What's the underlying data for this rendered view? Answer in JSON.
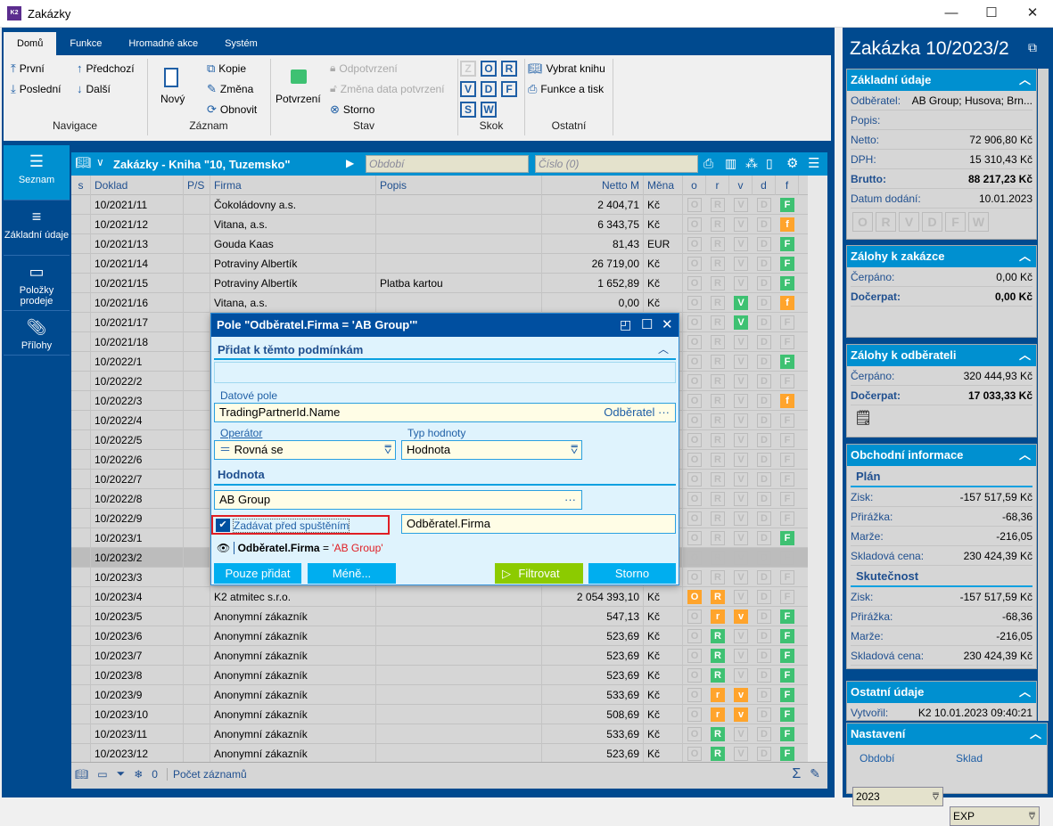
{
  "window": {
    "title": "Zakázky",
    "minimize": "—",
    "maximize": "☐",
    "close": "✕"
  },
  "ribbon": {
    "tabs": [
      "Domů",
      "Funkce",
      "Hromadné akce",
      "Systém"
    ],
    "nav": {
      "first": "První",
      "prev": "Předchozí",
      "last": "Poslední",
      "next": "Další",
      "group": "Navigace"
    },
    "record": {
      "new": "Nový",
      "copy": "Kopie",
      "edit": "Změna",
      "refresh": "Obnovit",
      "group": "Záznam"
    },
    "state": {
      "confirm": "Potvrzení",
      "unconfirm": "Odpotvrzení",
      "change_date": "Změna data potvrzení",
      "cancel": "Storno",
      "group": "Stav"
    },
    "jump": {
      "letters": [
        "Z",
        "O",
        "R",
        "V",
        "D",
        "F",
        "S",
        "W"
      ],
      "group": "Skok"
    },
    "other": {
      "book": "Vybrat knihu",
      "print": "Funkce a tisk",
      "group": "Ostatní"
    }
  },
  "leftnav": [
    {
      "label": "Seznam",
      "icon": "list-icon"
    },
    {
      "label": "Základní údaje",
      "icon": "details-icon"
    },
    {
      "label": "Položky prodeje",
      "icon": "box-icon"
    },
    {
      "label": "Přílohy",
      "icon": "paperclip-icon"
    }
  ],
  "grid": {
    "title": "Zakázky - Kniha \"10, Tuzemsko\"",
    "period_placeholder": "Období",
    "number_placeholder": "Číslo (0)",
    "columns": [
      "s",
      "Doklad",
      "P/S",
      "Firma",
      "Popis",
      "Netto M",
      "Měna",
      "o",
      "r",
      "v",
      "d",
      "f"
    ],
    "rows": [
      {
        "doklad": "10/2021/11",
        "firma": "Čokoládovny a.s.",
        "popis": "",
        "netto": "2 404,71",
        "mena": "Kč",
        "flags": [
          [
            "O",
            "off"
          ],
          [
            "R",
            "off"
          ],
          [
            "V",
            "off"
          ],
          [
            "D",
            "off"
          ],
          [
            "F",
            "green"
          ]
        ]
      },
      {
        "doklad": "10/2021/12",
        "firma": "Vitana, a.s.",
        "popis": "",
        "netto": "6 343,75",
        "mena": "Kč",
        "flags": [
          [
            "O",
            "off"
          ],
          [
            "R",
            "off"
          ],
          [
            "V",
            "off"
          ],
          [
            "D",
            "off"
          ],
          [
            "f",
            "orange"
          ]
        ]
      },
      {
        "doklad": "10/2021/13",
        "firma": "Gouda Kaas",
        "popis": "",
        "netto": "81,43",
        "mena": "EUR",
        "flags": [
          [
            "O",
            "off"
          ],
          [
            "R",
            "off"
          ],
          [
            "V",
            "off"
          ],
          [
            "D",
            "off"
          ],
          [
            "F",
            "green"
          ]
        ]
      },
      {
        "doklad": "10/2021/14",
        "firma": "Potraviny Albertík",
        "popis": "",
        "netto": "26 719,00",
        "mena": "Kč",
        "flags": [
          [
            "O",
            "off"
          ],
          [
            "R",
            "off"
          ],
          [
            "V",
            "off"
          ],
          [
            "D",
            "off"
          ],
          [
            "F",
            "green"
          ]
        ]
      },
      {
        "doklad": "10/2021/15",
        "firma": "Potraviny Albertík",
        "popis": "Platba kartou",
        "netto": "1 652,89",
        "mena": "Kč",
        "flags": [
          [
            "O",
            "off"
          ],
          [
            "R",
            "off"
          ],
          [
            "V",
            "off"
          ],
          [
            "D",
            "off"
          ],
          [
            "F",
            "green"
          ]
        ]
      },
      {
        "doklad": "10/2021/16",
        "firma": "Vitana, a.s.",
        "popis": "",
        "netto": "0,00",
        "mena": "Kč",
        "flags": [
          [
            "O",
            "off"
          ],
          [
            "R",
            "off"
          ],
          [
            "V",
            "green"
          ],
          [
            "D",
            "off"
          ],
          [
            "f",
            "orange"
          ]
        ]
      },
      {
        "doklad": "10/2021/17",
        "firma": "",
        "popis": "",
        "netto": "",
        "mena": "",
        "flags": [
          [
            "O",
            "off"
          ],
          [
            "R",
            "off"
          ],
          [
            "V",
            "green"
          ],
          [
            "D",
            "off"
          ],
          [
            "F",
            "off"
          ]
        ]
      },
      {
        "doklad": "10/2021/18",
        "firma": "",
        "popis": "",
        "netto": "",
        "mena": "",
        "flags": [
          [
            "O",
            "off"
          ],
          [
            "R",
            "off"
          ],
          [
            "V",
            "off"
          ],
          [
            "D",
            "off"
          ],
          [
            "F",
            "off"
          ]
        ]
      },
      {
        "doklad": "10/2022/1",
        "firma": "",
        "popis": "",
        "netto": "",
        "mena": "",
        "flags": [
          [
            "O",
            "off"
          ],
          [
            "R",
            "off"
          ],
          [
            "V",
            "off"
          ],
          [
            "D",
            "off"
          ],
          [
            "F",
            "green"
          ]
        ]
      },
      {
        "doklad": "10/2022/2",
        "firma": "",
        "popis": "",
        "netto": "",
        "mena": "",
        "flags": [
          [
            "O",
            "off"
          ],
          [
            "R",
            "off"
          ],
          [
            "V",
            "off"
          ],
          [
            "D",
            "off"
          ],
          [
            "F",
            "off"
          ]
        ]
      },
      {
        "doklad": "10/2022/3",
        "firma": "",
        "popis": "",
        "netto": "",
        "mena": "",
        "flags": [
          [
            "O",
            "off"
          ],
          [
            "R",
            "off"
          ],
          [
            "V",
            "off"
          ],
          [
            "D",
            "off"
          ],
          [
            "f",
            "orange"
          ]
        ]
      },
      {
        "doklad": "10/2022/4",
        "firma": "",
        "popis": "",
        "netto": "",
        "mena": "",
        "flags": [
          [
            "O",
            "off"
          ],
          [
            "R",
            "off"
          ],
          [
            "V",
            "off"
          ],
          [
            "D",
            "off"
          ],
          [
            "F",
            "off"
          ]
        ]
      },
      {
        "doklad": "10/2022/5",
        "firma": "",
        "popis": "",
        "netto": "",
        "mena": "",
        "flags": [
          [
            "O",
            "off"
          ],
          [
            "R",
            "off"
          ],
          [
            "V",
            "off"
          ],
          [
            "D",
            "off"
          ],
          [
            "F",
            "off"
          ]
        ]
      },
      {
        "doklad": "10/2022/6",
        "firma": "",
        "popis": "",
        "netto": "",
        "mena": "",
        "flags": [
          [
            "O",
            "off"
          ],
          [
            "R",
            "off"
          ],
          [
            "V",
            "off"
          ],
          [
            "D",
            "off"
          ],
          [
            "F",
            "off"
          ]
        ]
      },
      {
        "doklad": "10/2022/7",
        "firma": "",
        "popis": "",
        "netto": "",
        "mena": "",
        "flags": [
          [
            "O",
            "off"
          ],
          [
            "R",
            "off"
          ],
          [
            "V",
            "off"
          ],
          [
            "D",
            "off"
          ],
          [
            "F",
            "off"
          ]
        ]
      },
      {
        "doklad": "10/2022/8",
        "firma": "",
        "popis": "",
        "netto": "",
        "mena": "",
        "flags": [
          [
            "O",
            "off"
          ],
          [
            "R",
            "off"
          ],
          [
            "V",
            "off"
          ],
          [
            "D",
            "off"
          ],
          [
            "F",
            "off"
          ]
        ]
      },
      {
        "doklad": "10/2022/9",
        "firma": "",
        "popis": "",
        "netto": "",
        "mena": "",
        "flags": [
          [
            "O",
            "off"
          ],
          [
            "R",
            "off"
          ],
          [
            "V",
            "off"
          ],
          [
            "D",
            "off"
          ],
          [
            "F",
            "off"
          ]
        ]
      },
      {
        "doklad": "10/2023/1",
        "firma": "",
        "popis": "",
        "netto": "",
        "mena": "",
        "flags": [
          [
            "O",
            "off"
          ],
          [
            "R",
            "off"
          ],
          [
            "V",
            "off"
          ],
          [
            "D",
            "off"
          ],
          [
            "F",
            "green"
          ]
        ]
      },
      {
        "doklad": "10/2023/2",
        "firma": "",
        "popis": "",
        "netto": "",
        "mena": "",
        "selected": true,
        "flags": [
          [
            "O",
            "off"
          ],
          [
            "R",
            "off"
          ],
          [
            "V",
            "off"
          ],
          [
            "D",
            "off"
          ],
          [
            "F",
            "off"
          ]
        ]
      },
      {
        "doklad": "10/2023/3",
        "firma": "",
        "popis": "",
        "netto": "",
        "mena": "",
        "flags": [
          [
            "O",
            "off"
          ],
          [
            "R",
            "off"
          ],
          [
            "V",
            "off"
          ],
          [
            "D",
            "off"
          ],
          [
            "F",
            "off"
          ]
        ]
      },
      {
        "doklad": "10/2023/4",
        "firma": "K2 atmitec s.r.o.",
        "popis": "",
        "netto": "2 054 393,10",
        "mena": "Kč",
        "flags": [
          [
            "O",
            "orange"
          ],
          [
            "R",
            "orange"
          ],
          [
            "V",
            "off"
          ],
          [
            "D",
            "off"
          ],
          [
            "F",
            "off"
          ]
        ]
      },
      {
        "doklad": "10/2023/5",
        "firma": "Anonymní zákazník",
        "popis": "",
        "netto": "547,13",
        "mena": "Kč",
        "flags": [
          [
            "O",
            "off"
          ],
          [
            "r",
            "orange"
          ],
          [
            "v",
            "orange"
          ],
          [
            "D",
            "off"
          ],
          [
            "F",
            "green"
          ]
        ]
      },
      {
        "doklad": "10/2023/6",
        "firma": "Anonymní zákazník",
        "popis": "",
        "netto": "523,69",
        "mena": "Kč",
        "flags": [
          [
            "O",
            "off"
          ],
          [
            "R",
            "green"
          ],
          [
            "V",
            "off"
          ],
          [
            "D",
            "off"
          ],
          [
            "F",
            "green"
          ]
        ]
      },
      {
        "doklad": "10/2023/7",
        "firma": "Anonymní zákazník",
        "popis": "",
        "netto": "523,69",
        "mena": "Kč",
        "flags": [
          [
            "O",
            "off"
          ],
          [
            "R",
            "green"
          ],
          [
            "V",
            "off"
          ],
          [
            "D",
            "off"
          ],
          [
            "F",
            "green"
          ]
        ]
      },
      {
        "doklad": "10/2023/8",
        "firma": "Anonymní zákazník",
        "popis": "",
        "netto": "523,69",
        "mena": "Kč",
        "flags": [
          [
            "O",
            "off"
          ],
          [
            "R",
            "green"
          ],
          [
            "V",
            "off"
          ],
          [
            "D",
            "off"
          ],
          [
            "F",
            "green"
          ]
        ]
      },
      {
        "doklad": "10/2023/9",
        "firma": "Anonymní zákazník",
        "popis": "",
        "netto": "533,69",
        "mena": "Kč",
        "flags": [
          [
            "O",
            "off"
          ],
          [
            "r",
            "orange"
          ],
          [
            "v",
            "orange"
          ],
          [
            "D",
            "off"
          ],
          [
            "F",
            "green"
          ]
        ]
      },
      {
        "doklad": "10/2023/10",
        "firma": "Anonymní zákazník",
        "popis": "",
        "netto": "508,69",
        "mena": "Kč",
        "flags": [
          [
            "O",
            "off"
          ],
          [
            "r",
            "orange"
          ],
          [
            "v",
            "orange"
          ],
          [
            "D",
            "off"
          ],
          [
            "F",
            "green"
          ]
        ]
      },
      {
        "doklad": "10/2023/11",
        "firma": "Anonymní zákazník",
        "popis": "",
        "netto": "533,69",
        "mena": "Kč",
        "flags": [
          [
            "O",
            "off"
          ],
          [
            "R",
            "green"
          ],
          [
            "V",
            "off"
          ],
          [
            "D",
            "off"
          ],
          [
            "F",
            "green"
          ]
        ]
      },
      {
        "doklad": "10/2023/12",
        "firma": "Anonymní zákazník",
        "popis": "",
        "netto": "523,69",
        "mena": "Kč",
        "flags": [
          [
            "O",
            "off"
          ],
          [
            "R",
            "green"
          ],
          [
            "V",
            "off"
          ],
          [
            "D",
            "off"
          ],
          [
            "F",
            "green"
          ]
        ]
      }
    ],
    "status": {
      "filter_count": "0",
      "records": "Počet záznamů"
    }
  },
  "dialog": {
    "title": "Pole \"Odběratel.Firma = 'AB Group'\"",
    "add_section": "Přidat k těmto podmínkám",
    "field_label": "Datové pole",
    "field_value": "TradingPartnerId.Name",
    "field_caption": "Odběratel",
    "operator_label": "Operátor",
    "operator_value": "Rovná se",
    "type_label": "Typ hodnoty",
    "type_value": "Hodnota",
    "value_section": "Hodnota",
    "value": "AB Group",
    "ask_label": "Zadávat před spuštěním",
    "ask_checked": true,
    "ask_caption": "Odběratel.Firma",
    "preview_field": "Odběratel.Firma",
    "preview_op": " = ",
    "preview_value": "'AB Group'",
    "btn_add_only": "Pouze přidat",
    "btn_less": "Méně...",
    "btn_filter": "Filtrovat",
    "btn_cancel": "Storno"
  },
  "right": {
    "title": "Zakázka 10/2023/2",
    "basic": {
      "title": "Základní údaje",
      "customer_label": "Odběratel:",
      "customer": "AB Group; Husova; Brn...",
      "desc_label": "Popis:",
      "netto_label": "Netto:",
      "netto": "72 906,80 Kč",
      "dph_label": "DPH:",
      "dph": "15 310,43 Kč",
      "brutto_label": "Brutto:",
      "brutto": "88 217,23 Kč",
      "date_label": "Datum dodání:",
      "date": "10.01.2023",
      "flags": [
        "O",
        "R",
        "V",
        "D",
        "F",
        "W"
      ]
    },
    "adv_order": {
      "title": "Zálohy k zakázce",
      "used_label": "Čerpáno:",
      "used": "0,00 Kč",
      "rest_label": "Dočerpat:",
      "rest": "0,00 Kč"
    },
    "adv_cust": {
      "title": "Zálohy k odběrateli",
      "used_label": "Čerpáno:",
      "used": "320 444,93 Kč",
      "rest_label": "Dočerpat:",
      "rest": "17 033,33 Kč"
    },
    "business": {
      "title": "Obchodní informace",
      "plan": {
        "title": "Plán",
        "zisk": "-157 517,59 Kč",
        "prirazka": "-68,36",
        "marze": "-216,05",
        "sklad": "230 424,39 Kč"
      },
      "actual": {
        "title": "Skutečnost",
        "zisk": "-157 517,59 Kč",
        "prirazka": "-68,36",
        "marze": "-216,05",
        "sklad": "230 424,39 Kč"
      },
      "labels": {
        "zisk": "Zisk:",
        "prirazka": "Přirážka:",
        "marze": "Marže:",
        "sklad": "Skladová cena:"
      }
    },
    "other": {
      "title": "Ostatní údaje",
      "created_label": "Vytvořil:",
      "created": "K2 10.01.2023 09:40:21"
    },
    "settings": {
      "title": "Nastavení",
      "period_label": "Období",
      "period": "2023",
      "store_label": "Sklad",
      "store": "EXP"
    }
  }
}
